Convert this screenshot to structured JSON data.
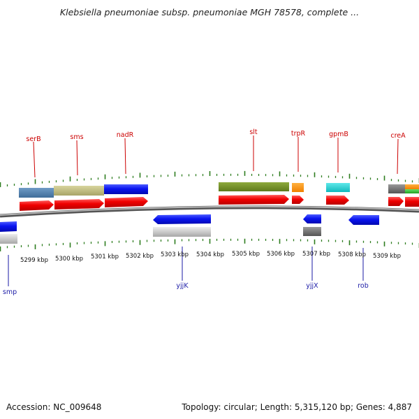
{
  "title": "Klebsiella pneumoniae subsp. pneumoniae MGH 78578, complete ...",
  "footer": {
    "accession": "Accession: NC_009648",
    "summary": "Topology: circular; Length: 5,315,120 bp; Genes: 4,887"
  },
  "colors": {
    "tick": "#2e7d1f",
    "backbone": "#8a8a8a",
    "forward_label": "#cc0000",
    "reverse_label": "#1a1aa6"
  },
  "scale": {
    "labels": [
      "5299 kbp",
      "5300 kbp",
      "5301 kbp",
      "5302 kbp",
      "5303 kbp",
      "5304 kbp",
      "5305 kbp",
      "5306 kbp",
      "5307 kbp",
      "5308 kbp",
      "5309 kbp"
    ]
  },
  "genes": {
    "forward_labels": [
      "serB",
      "sms",
      "nadR",
      "slt",
      "trpR",
      "gpmB",
      "creA"
    ],
    "reverse_labels": [
      "smp",
      "yjjK",
      "yjjX",
      "rob"
    ]
  }
}
